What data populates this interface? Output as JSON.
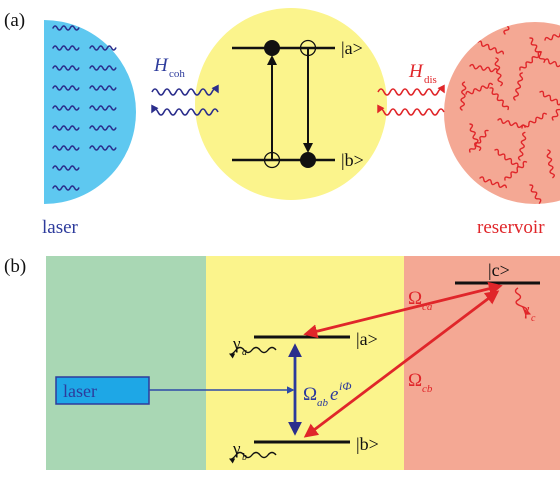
{
  "panel_a": {
    "label": "(a)",
    "h_coh_main": "H",
    "h_coh_sub": "coh",
    "h_dis_main": "H",
    "h_dis_sub": "dis",
    "level_a": "|a>",
    "level_b": "|b>",
    "laser_label": "laser",
    "reservoir_label": "reservoir"
  },
  "panel_b": {
    "label": "(b)",
    "laser_box": "laser",
    "level_a": "|a>",
    "level_b": "|b>",
    "level_c": "|c>",
    "gamma_a_main": "γ",
    "gamma_a_sub": "a",
    "gamma_b_main": "γ",
    "gamma_b_sub": "b",
    "gamma_c_main": "γ",
    "gamma_c_sub": "c",
    "omega_ab_main": "Ω",
    "omega_ab_sub": "ab",
    "omega_ab_e": "e",
    "omega_ab_exp": "iΦ",
    "omega_ca_main": "Ω",
    "omega_ca_sub": "ca",
    "omega_cb_main": "Ω",
    "omega_cb_sub": "cb"
  },
  "colors": {
    "laser_blue": "#5ec8f0",
    "atom_yellow": "#fbf48c",
    "reservoir_salmon": "#f4a894",
    "green_region": "#a9d7b4",
    "coherent_navy": "#2b2e8c",
    "dissipative_red": "#e0262a",
    "label_blue": "#2d3b9c"
  }
}
